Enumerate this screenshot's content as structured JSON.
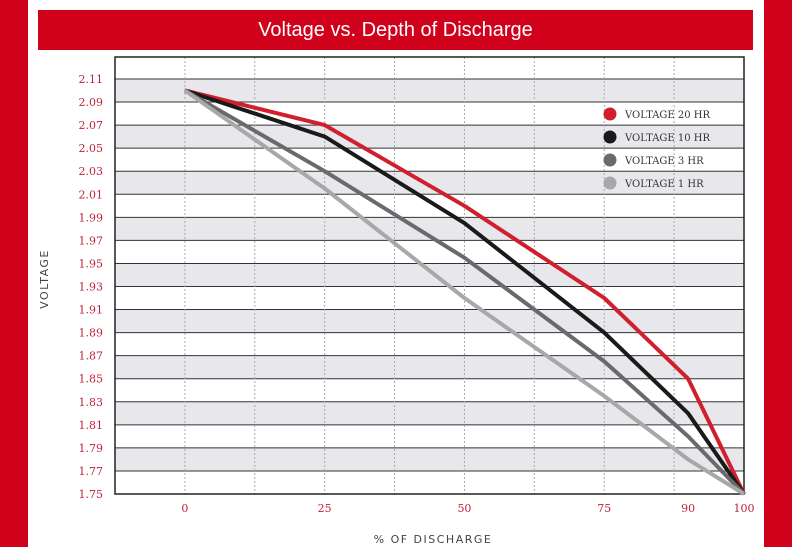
{
  "title": "Voltage vs. Depth of Discharge",
  "colors": {
    "frame": "#d0021b",
    "band": "#e8e8ec",
    "grid_v": "#a8a8a8",
    "tick_text": "#c0223a"
  },
  "chart_data": {
    "type": "line",
    "title": "Voltage vs. Depth of Discharge",
    "xlabel": "% OF DISCHARGE",
    "ylabel": "VOLTAGE",
    "x": [
      0,
      25,
      50,
      75,
      90,
      100
    ],
    "x_ticks": [
      "0",
      "25",
      "50",
      "75",
      "90",
      "100"
    ],
    "y_ticks": [
      "1.75",
      "1.77",
      "1.79",
      "1.81",
      "1.83",
      "1.85",
      "1.87",
      "1.89",
      "1.91",
      "1.93",
      "1.95",
      "1.97",
      "1.99",
      "2.01",
      "2.03",
      "2.05",
      "2.07",
      "2.09",
      "2.11"
    ],
    "xlim": [
      -12.5,
      100
    ],
    "ylim": [
      1.75,
      2.11
    ],
    "grid": true,
    "legend_position": "top-right",
    "series": [
      {
        "name": "VOLTAGE 20 HR",
        "color": "#d0202e",
        "values": [
          2.1,
          2.07,
          2.0,
          1.92,
          1.85,
          1.75
        ]
      },
      {
        "name": "VOLTAGE 10 HR",
        "color": "#1a1a1a",
        "values": [
          2.1,
          2.06,
          1.985,
          1.89,
          1.82,
          1.75
        ]
      },
      {
        "name": "VOLTAGE 3 HR",
        "color": "#6a6a6c",
        "values": [
          2.1,
          2.03,
          1.955,
          1.865,
          1.8,
          1.75
        ]
      },
      {
        "name": "VOLTAGE 1 HR",
        "color": "#a8a8aa",
        "values": [
          2.1,
          2.015,
          1.92,
          1.835,
          1.78,
          1.75
        ]
      }
    ]
  }
}
